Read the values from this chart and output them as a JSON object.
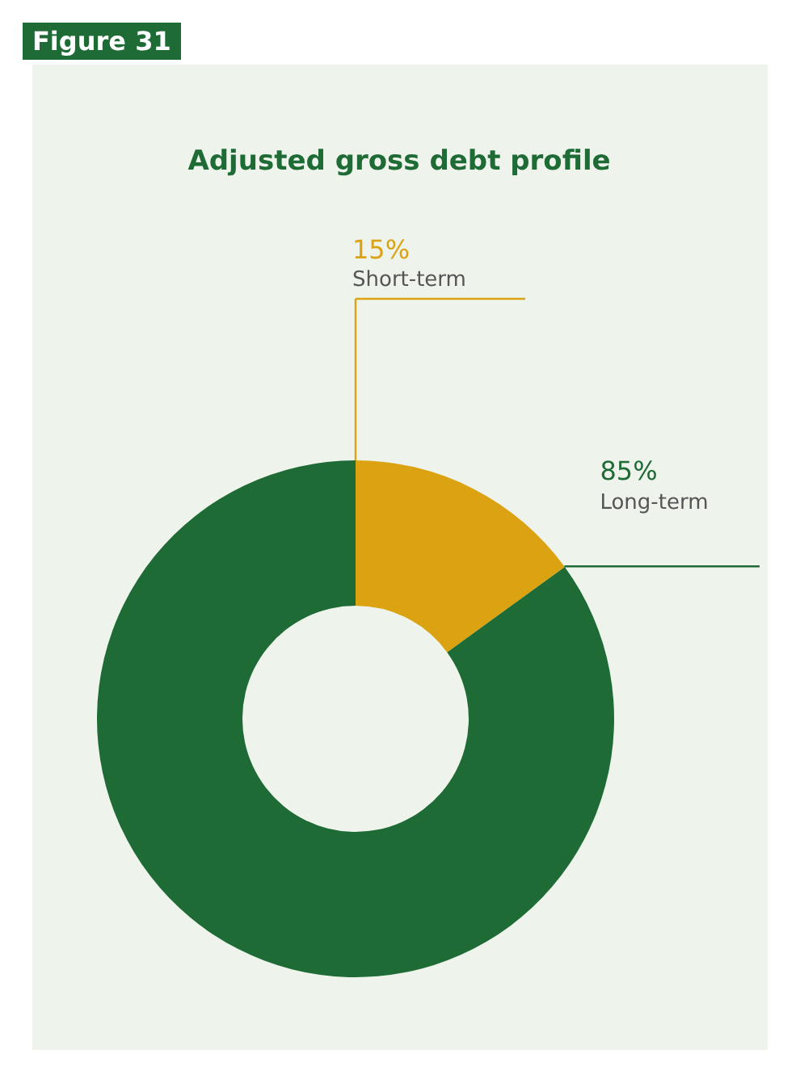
{
  "chart_data": {
    "type": "donut",
    "title": "Adjusted gross debt profile",
    "annotations": [
      "Figure 31"
    ],
    "categories": [
      "Short-term",
      "Long-term"
    ],
    "values": [
      15,
      85
    ],
    "colors": [
      "#dba212",
      "#1e6b35"
    ],
    "value_labels": [
      "15%",
      "85%"
    ]
  }
}
